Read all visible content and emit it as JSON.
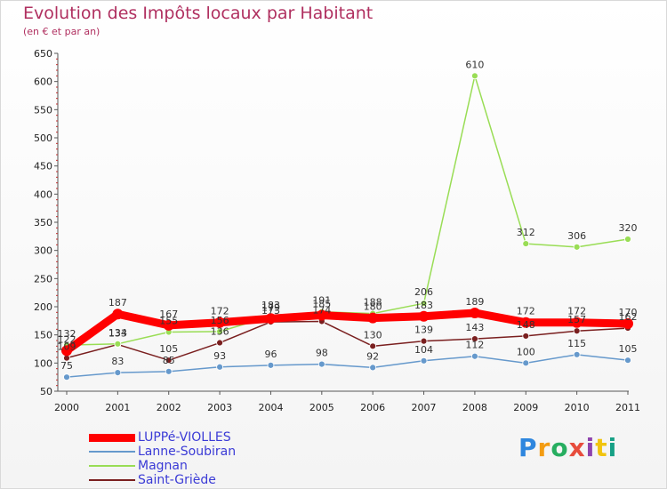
{
  "page": {
    "title": "Evolution des Impôts locaux par Habitant",
    "subtitle": "(en € et par an)",
    "logo_text": "Proxiti"
  },
  "chart_data": {
    "type": "line",
    "title": "Evolution des Impôts locaux par Habitant",
    "subtitle": "(en € et par an)",
    "xlabel": "",
    "ylabel": "",
    "ylim": [
      50,
      650
    ],
    "yticks": [
      50,
      100,
      150,
      200,
      250,
      300,
      350,
      400,
      450,
      500,
      550,
      600,
      650
    ],
    "grid": false,
    "categories": [
      "2000",
      "2001",
      "2002",
      "2003",
      "2004",
      "2005",
      "2006",
      "2007",
      "2008",
      "2009",
      "2010",
      "2011"
    ],
    "series": [
      {
        "name": "LUPPé-VIOLLES",
        "color": "#ff0000",
        "values": [
          122,
          187,
          167,
          172,
          179,
          185,
          180,
          183,
          189,
          172,
          172,
          170
        ]
      },
      {
        "name": "Lanne-Soubiran",
        "color": "#6699cc",
        "values": [
          75,
          83,
          85,
          93,
          96,
          98,
          92,
          104,
          112,
          100,
          115,
          105
        ]
      },
      {
        "name": "Magnan",
        "color": "#99dd55",
        "values": [
          132,
          134,
          155,
          156,
          183,
          191,
          188,
          206,
          610,
          312,
          306,
          320
        ]
      },
      {
        "name": "Saint-Griède",
        "color": "#7a1f1f",
        "values": [
          109,
          133,
          105,
          136,
          173,
          174,
          130,
          139,
          143,
          148,
          157,
          162
        ]
      }
    ]
  }
}
